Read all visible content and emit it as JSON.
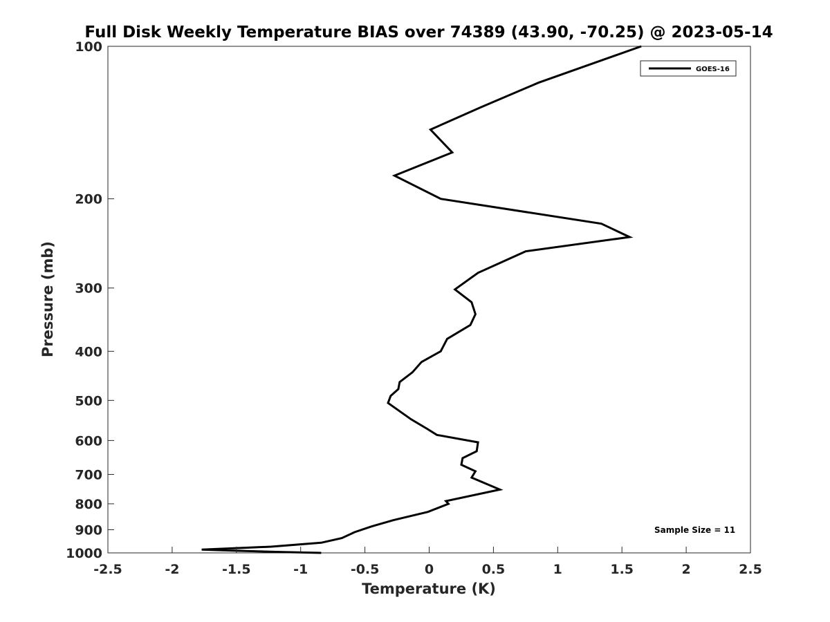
{
  "chart_data": {
    "type": "line",
    "title": "Full Disk Weekly Temperature BIAS over 74389 (43.90, -70.25) @ 2023-05-14",
    "xlabel": "Temperature (K)",
    "ylabel": "Pressure (mb)",
    "xlim": [
      -2.5,
      2.5
    ],
    "ylim": [
      100,
      1000
    ],
    "y_scale": "log",
    "y_reversed": true,
    "grid": false,
    "legend_position": "top-right",
    "x_ticks": [
      "-2.5",
      "-2",
      "-1.5",
      "-1",
      "-0.5",
      "0",
      "0.5",
      "1",
      "1.5",
      "2",
      "2.5"
    ],
    "y_ticks": [
      "100",
      "200",
      "300",
      "400",
      "500",
      "600",
      "700",
      "800",
      "900",
      "1000"
    ],
    "series": [
      {
        "name": "GOES-16",
        "color": "#000000",
        "points": [
          [
            1.65,
            100
          ],
          [
            0.85,
            118
          ],
          [
            0.4,
            132
          ],
          [
            0.01,
            146
          ],
          [
            0.18,
            162
          ],
          [
            -0.27,
            180
          ],
          [
            0.09,
            200
          ],
          [
            1.34,
            224
          ],
          [
            1.56,
            238
          ],
          [
            0.75,
            254
          ],
          [
            0.38,
            280
          ],
          [
            0.2,
            302
          ],
          [
            0.33,
            320
          ],
          [
            0.36,
            338
          ],
          [
            0.32,
            355
          ],
          [
            0.14,
            378
          ],
          [
            0.09,
            400
          ],
          [
            -0.06,
            420
          ],
          [
            -0.13,
            440
          ],
          [
            -0.23,
            460
          ],
          [
            -0.24,
            475
          ],
          [
            -0.3,
            490
          ],
          [
            -0.32,
            506
          ],
          [
            -0.14,
            545
          ],
          [
            -0.01,
            570
          ],
          [
            0.06,
            585
          ],
          [
            0.38,
            605
          ],
          [
            0.37,
            630
          ],
          [
            0.26,
            650
          ],
          [
            0.25,
            670
          ],
          [
            0.36,
            690
          ],
          [
            0.33,
            710
          ],
          [
            0.55,
            750
          ],
          [
            0.13,
            790
          ],
          [
            0.15,
            800
          ],
          [
            -0.01,
            830
          ],
          [
            -0.28,
            862
          ],
          [
            -0.45,
            887
          ],
          [
            -0.58,
            910
          ],
          [
            -0.68,
            935
          ],
          [
            -0.84,
            955
          ],
          [
            -1.23,
            972
          ],
          [
            -1.77,
            985
          ],
          [
            -1.52,
            990
          ],
          [
            -1.14,
            996
          ],
          [
            -0.84,
            1000
          ]
        ]
      }
    ],
    "annotations": [
      "Sample Size = 11"
    ]
  }
}
